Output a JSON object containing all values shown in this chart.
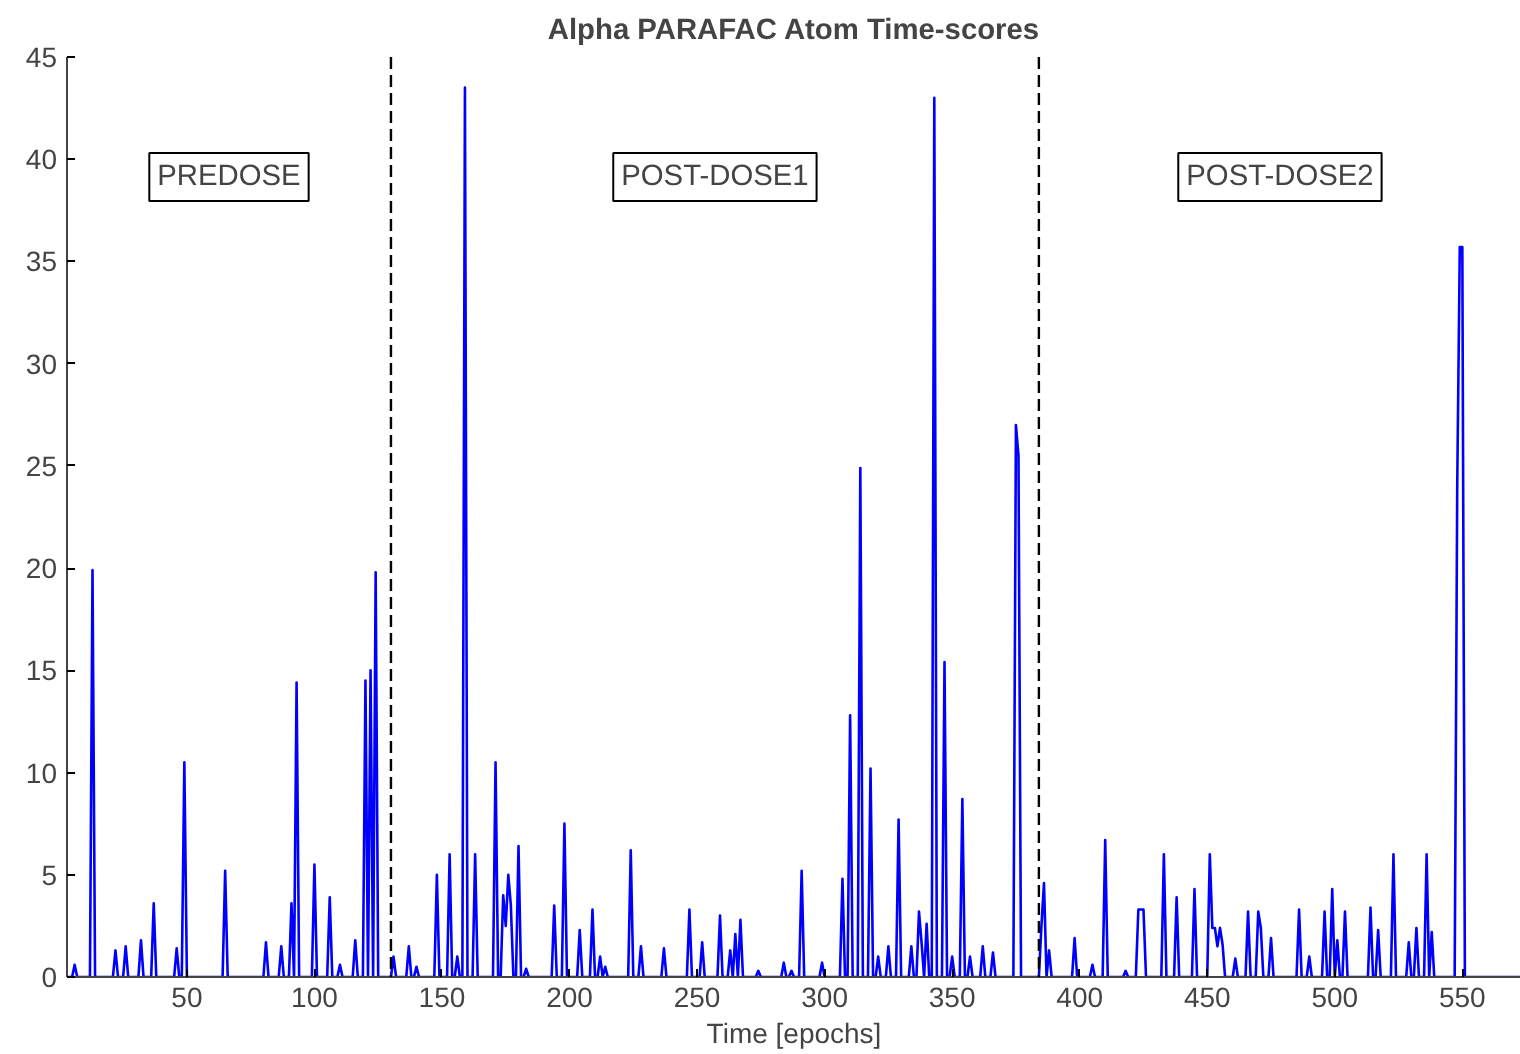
{
  "chart_data": {
    "type": "line",
    "title": "Alpha PARAFAC Atom Time-scores",
    "xlabel": "Time [epochs]",
    "xlim": [
      3,
      573
    ],
    "ylim": [
      0,
      45
    ],
    "xticks": [
      50,
      100,
      150,
      200,
      250,
      300,
      350,
      400,
      450,
      500,
      550
    ],
    "yticks": [
      0,
      5,
      10,
      15,
      20,
      25,
      30,
      35,
      40,
      45
    ],
    "grid": false,
    "line_style": "solid",
    "marker": "none",
    "ref_lines": [
      {
        "axis": "x",
        "value": 130,
        "color": "#000000",
        "line_style": "dashed"
      },
      {
        "axis": "x",
        "value": 384,
        "color": "#000000",
        "line_style": "dashed"
      }
    ],
    "annotations": [
      "PREDOSE",
      "POST-DOSE1",
      "POST-DOSE2"
    ],
    "series": [
      {
        "color": "#0000ff",
        "x": [
          3,
          5,
          6,
          7,
          12,
          13,
          14,
          21,
          22,
          23,
          25,
          26,
          27,
          31,
          32,
          33,
          36,
          37,
          38,
          45,
          46,
          47,
          48,
          49,
          50,
          64,
          65,
          66,
          80,
          81,
          82,
          86,
          87,
          88,
          90,
          91,
          92,
          93,
          94,
          99,
          100,
          101,
          105,
          106,
          107,
          109,
          110,
          111,
          115,
          116,
          117,
          119,
          120,
          121,
          122,
          123,
          124,
          125,
          130,
          131,
          132,
          136,
          137,
          138,
          139,
          140,
          141,
          147,
          148,
          149,
          152,
          153,
          154,
          155,
          156,
          157,
          158,
          159,
          160,
          162,
          163,
          164,
          170,
          171,
          172,
          173,
          174,
          175,
          176,
          177,
          178,
          179,
          180,
          181,
          182,
          183,
          184,
          193,
          194,
          195,
          197,
          198,
          199,
          203,
          204,
          205,
          208,
          209,
          210,
          211,
          212,
          213,
          214,
          215,
          223,
          224,
          225,
          227,
          228,
          229,
          236,
          237,
          238,
          246,
          247,
          248,
          251,
          252,
          253,
          258,
          259,
          260,
          262,
          263,
          264,
          265,
          266,
          267,
          268,
          273,
          274,
          275,
          283,
          284,
          285,
          286,
          287,
          288,
          290,
          291,
          292,
          298,
          299,
          300,
          306,
          307,
          308,
          309,
          310,
          311,
          313,
          314,
          315,
          317,
          318,
          319,
          320,
          321,
          322,
          324,
          325,
          326,
          328,
          329,
          330,
          333,
          334,
          335,
          336,
          337,
          338,
          339,
          340,
          341,
          342,
          343,
          344,
          346,
          347,
          348,
          349,
          350,
          351,
          353,
          354,
          355,
          356,
          357,
          358,
          361,
          362,
          363,
          365,
          366,
          367,
          374,
          375,
          376,
          377,
          384,
          385,
          386,
          387,
          388,
          389,
          397,
          398,
          399,
          404,
          405,
          406,
          409,
          410,
          411,
          417,
          418,
          419,
          422,
          423,
          424,
          425,
          426,
          432,
          433,
          434,
          437,
          438,
          439,
          444,
          445,
          446,
          450,
          451,
          452,
          453,
          454,
          455,
          456,
          457,
          460,
          461,
          462,
          465,
          466,
          467,
          469,
          470,
          471,
          472,
          474,
          475,
          476,
          485,
          486,
          487,
          489,
          490,
          491,
          495,
          496,
          497,
          498,
          499,
          500,
          501,
          502,
          503,
          504,
          505,
          513,
          514,
          515,
          516,
          517,
          518,
          522,
          523,
          524,
          528,
          529,
          530,
          531,
          532,
          533,
          535,
          536,
          537,
          538,
          539,
          547,
          548,
          549,
          550,
          551,
          573
        ],
        "values": [
          0,
          0,
          0.6,
          0,
          0,
          19.9,
          0,
          0,
          1.3,
          0,
          0,
          1.5,
          0,
          0,
          1.8,
          0,
          0,
          3.6,
          0,
          0,
          1.4,
          0,
          0,
          10.5,
          0,
          0,
          5.2,
          0,
          0,
          1.7,
          0,
          0,
          1.5,
          0,
          0,
          3.6,
          0,
          14.4,
          0,
          0,
          5.5,
          0,
          0,
          3.9,
          0,
          0,
          0.6,
          0,
          0,
          1.8,
          0,
          0,
          14.5,
          0,
          15.0,
          0,
          19.8,
          0,
          0,
          1.0,
          0,
          0,
          1.5,
          0,
          0,
          0.5,
          0,
          0,
          5.0,
          0,
          0,
          6.0,
          0,
          0,
          1.0,
          0,
          0,
          43.5,
          0,
          0,
          6.0,
          0,
          0,
          10.5,
          0,
          0,
          4.0,
          2.5,
          5.0,
          3.5,
          0,
          0,
          6.4,
          0,
          0,
          0.4,
          0,
          0,
          3.5,
          0,
          0,
          7.5,
          0,
          0,
          2.3,
          0,
          0,
          3.3,
          0,
          0,
          1.0,
          0,
          0.5,
          0,
          0,
          6.2,
          0,
          0,
          1.5,
          0,
          0,
          1.4,
          0,
          0,
          3.3,
          0,
          0,
          1.7,
          0,
          0,
          3.0,
          0,
          0,
          1.3,
          0,
          2.1,
          0,
          2.8,
          0,
          0,
          0.3,
          0,
          0,
          0.7,
          0,
          0,
          0.3,
          0,
          0,
          5.2,
          0,
          0,
          0.7,
          0,
          0,
          4.8,
          0,
          0,
          12.8,
          0,
          0,
          24.9,
          0,
          0,
          10.2,
          0,
          0,
          1.0,
          0,
          0,
          1.5,
          0,
          0,
          7.7,
          0,
          0,
          1.5,
          0,
          0,
          3.2,
          1.7,
          0,
          2.6,
          0,
          0,
          43.0,
          0,
          0,
          15.4,
          0,
          0,
          1.0,
          0,
          0,
          8.7,
          0,
          0,
          1.0,
          0,
          0,
          1.5,
          0,
          0,
          1.2,
          0,
          0,
          27.0,
          25.5,
          0,
          0,
          2.5,
          4.6,
          0,
          1.3,
          0,
          0,
          1.9,
          0,
          0,
          0.6,
          0,
          0,
          6.7,
          0,
          0,
          0.3,
          0,
          0,
          3.3,
          3.3,
          3.3,
          0,
          0,
          6.0,
          0,
          0,
          3.9,
          0,
          0,
          4.3,
          0,
          0,
          6.0,
          2.4,
          2.4,
          1.5,
          2.4,
          1.6,
          0,
          0,
          0.9,
          0,
          0,
          3.2,
          0,
          0,
          3.2,
          2.4,
          0,
          0,
          1.9,
          0,
          0,
          3.3,
          0,
          0,
          1.0,
          0,
          0,
          3.2,
          0,
          0,
          4.3,
          0,
          1.8,
          0,
          0,
          3.2,
          0,
          0,
          3.4,
          0,
          0,
          2.3,
          0,
          0,
          6.0,
          0,
          0,
          1.7,
          0,
          0,
          2.4,
          0,
          0,
          6.0,
          0,
          2.2,
          0,
          0,
          24.0,
          35.7,
          35.7,
          0,
          0
        ]
      }
    ]
  }
}
